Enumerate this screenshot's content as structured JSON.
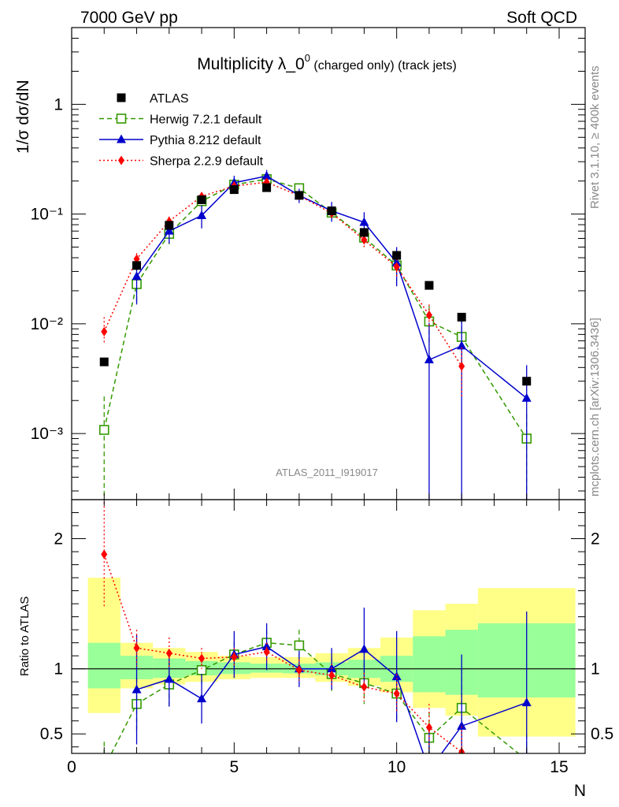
{
  "header": {
    "energy_label": "7000 GeV pp",
    "category_label": "Soft QCD"
  },
  "sidebar": {
    "rivet_label": "Rivet 3.1.10, ≥ 400k events",
    "site_label": "mcplots.cern.ch [arXiv:1306.3436]"
  },
  "chart_data": {
    "type": "line",
    "title_main": "Multiplicity λ_0",
    "title_sup": "0",
    "title_suffix": " (charged only) (track jets)",
    "analysis_label": "ATLAS_2011_I919017",
    "ylabel": "1/σ dσ/dN",
    "ratio_ylabel": "Ratio to ATLAS",
    "xlabel": "N",
    "xlim": [
      0,
      15.8
    ],
    "ylim": [
      0.00025,
      5
    ],
    "ratio_ylim": [
      0.35,
      2.3
    ],
    "x_ticks": [
      "0",
      "5",
      "10",
      "15"
    ],
    "y_ticks": [
      "10⁻³",
      "10⁻²",
      "10⁻¹",
      "1"
    ],
    "ratio_ticks": [
      "0.5",
      "1",
      "2"
    ],
    "data": {
      "name": "ATLAS",
      "x": [
        1,
        2,
        3,
        4,
        5,
        6,
        7,
        8,
        9,
        10,
        11,
        12,
        14
      ],
      "values": [
        0.0045,
        0.034,
        0.079,
        0.135,
        0.167,
        0.174,
        0.148,
        0.107,
        0.068,
        0.042,
        0.0224,
        0.0115,
        0.003
      ]
    },
    "bands": {
      "edges": [
        0.5,
        1.5,
        2.5,
        3.5,
        4.5,
        5.5,
        6.5,
        7.5,
        8.5,
        9.5,
        10.5,
        11.5,
        12.5,
        15.5
      ],
      "inner": [
        [
          0.85,
          1.2
        ],
        [
          0.92,
          1.1
        ],
        [
          0.93,
          1.08
        ],
        [
          0.95,
          1.06
        ],
        [
          0.96,
          1.05
        ],
        [
          0.97,
          1.04
        ],
        [
          0.965,
          1.04
        ],
        [
          0.95,
          1.05
        ],
        [
          0.93,
          1.07
        ],
        [
          0.9,
          1.1
        ],
        [
          0.82,
          1.25
        ],
        [
          0.8,
          1.3
        ],
        [
          0.78,
          1.35
        ]
      ],
      "outer": [
        [
          0.66,
          1.7
        ],
        [
          0.85,
          1.2
        ],
        [
          0.88,
          1.16
        ],
        [
          0.9,
          1.13
        ],
        [
          0.92,
          1.1
        ],
        [
          0.93,
          1.09
        ],
        [
          0.93,
          1.09
        ],
        [
          0.9,
          1.12
        ],
        [
          0.87,
          1.16
        ],
        [
          0.82,
          1.24
        ],
        [
          0.7,
          1.45
        ],
        [
          0.64,
          1.5
        ],
        [
          0.48,
          1.62
        ]
      ]
    },
    "series": [
      {
        "name": "Herwig 7.2.1 default",
        "color": "#339900",
        "marker": "open-square",
        "dash": "6,4",
        "x": [
          1,
          2,
          3,
          4,
          5,
          6,
          7,
          8,
          9,
          10,
          11,
          12,
          14
        ],
        "values": [
          0.00108,
          0.023,
          0.066,
          0.131,
          0.185,
          0.208,
          0.172,
          0.103,
          0.061,
          0.034,
          0.0105,
          0.0076,
          0.0009
        ],
        "err_low": [
          0.0009,
          0.007,
          0.013,
          0.015,
          0.016,
          0.017,
          0.016,
          0.014,
          0.011,
          0.008,
          0.004,
          0.0035,
          0.0006
        ],
        "err_high": [
          0.0011,
          0.006,
          0.012,
          0.015,
          0.016,
          0.017,
          0.016,
          0.014,
          0.011,
          0.008,
          0.004,
          0.0035,
          0.0006
        ],
        "ratio": [
          0.24,
          0.73,
          0.88,
          0.99,
          1.11,
          1.2,
          1.18,
          0.96,
          0.89,
          0.81,
          0.47,
          0.7,
          0.3
        ],
        "ratio_err": [
          0.2,
          0.2,
          0.17,
          0.11,
          0.1,
          0.1,
          0.12,
          0.13,
          0.16,
          0.2,
          0.2,
          0.3,
          0.2
        ]
      },
      {
        "name": "Pythia 8.212 default",
        "color": "#0000cc",
        "marker": "filled-triangle",
        "dash": "",
        "x": [
          2,
          3,
          4,
          5,
          6,
          7,
          8,
          9,
          10,
          11,
          12,
          14
        ],
        "values": [
          0.027,
          0.07,
          0.097,
          0.193,
          0.222,
          0.148,
          0.107,
          0.084,
          0.036,
          0.0047,
          0.0063,
          0.0021
        ],
        "err_low": [
          0.012,
          0.016,
          0.023,
          0.03,
          0.03,
          0.022,
          0.022,
          0.02,
          0.014,
          0.0046,
          0.0062,
          0.002
        ],
        "err_high": [
          0.012,
          0.016,
          0.023,
          0.03,
          0.03,
          0.022,
          0.022,
          0.02,
          0.014,
          0.0055,
          0.0055,
          0.0021
        ],
        "ratio": [
          0.84,
          0.92,
          0.77,
          1.11,
          1.17,
          1.0,
          1.0,
          1.15,
          0.94,
          0.22,
          0.56,
          0.74
        ],
        "ratio_err": [
          0.42,
          0.21,
          0.19,
          0.18,
          0.18,
          0.14,
          0.16,
          0.32,
          0.35,
          0.3,
          0.55,
          0.7
        ]
      },
      {
        "name": "Sherpa 2.2.9 default",
        "color": "#ff0000",
        "marker": "filled-diamond",
        "dash": "2,3",
        "x": [
          1,
          2,
          3,
          4,
          5,
          6,
          7,
          8,
          9,
          10,
          11,
          12
        ],
        "values": [
          0.0085,
          0.039,
          0.086,
          0.145,
          0.18,
          0.195,
          0.147,
          0.102,
          0.058,
          0.033,
          0.012,
          0.0041
        ],
        "err_low": [
          0.002,
          0.005,
          0.009,
          0.011,
          0.011,
          0.012,
          0.011,
          0.01,
          0.008,
          0.006,
          0.003,
          0.002
        ],
        "err_high": [
          0.003,
          0.005,
          0.009,
          0.011,
          0.011,
          0.012,
          0.011,
          0.01,
          0.008,
          0.006,
          0.003,
          0.002
        ],
        "ratio": [
          1.88,
          1.16,
          1.12,
          1.08,
          1.09,
          1.13,
          0.99,
          0.95,
          0.86,
          0.81,
          0.55,
          0.36
        ],
        "ratio_err": [
          0.4,
          0.14,
          0.12,
          0.08,
          0.07,
          0.07,
          0.08,
          0.09,
          0.11,
          0.15,
          0.18,
          0.2
        ]
      }
    ]
  }
}
